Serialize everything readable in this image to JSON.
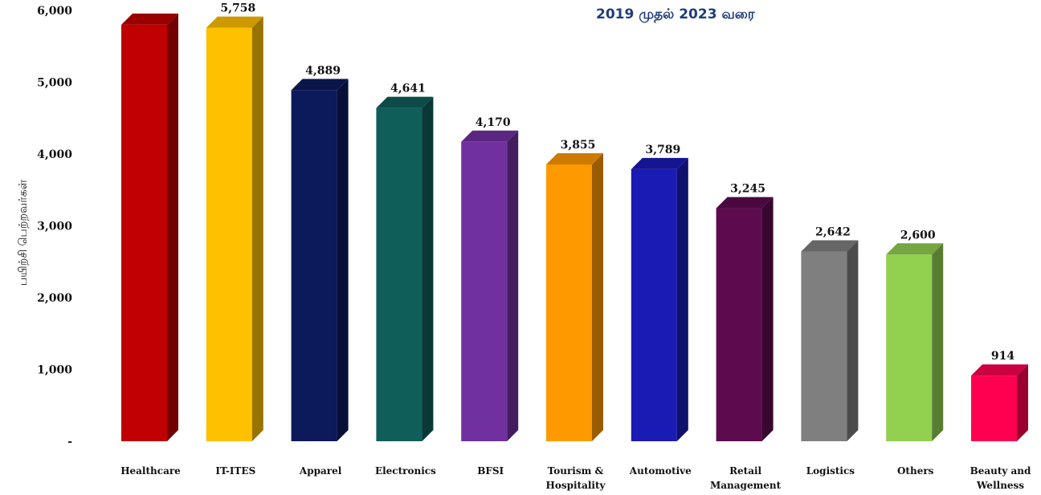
{
  "subtitle": "2019 முதல் 2023 வரை",
  "chart_data": {
    "type": "bar",
    "title": "",
    "subtitle": "2019 முதல் 2023 வரை",
    "xlabel": "",
    "ylabel": "பயிற்சி பெற்றவர்கள்",
    "ylim": [
      0,
      6000
    ],
    "yticks": [
      0,
      1000,
      2000,
      3000,
      4000,
      5000,
      6000
    ],
    "ytick_labels": [
      "-",
      "1,000",
      "2,000",
      "3,000",
      "4,000",
      "5,000",
      "6,000"
    ],
    "grid": false,
    "categories": [
      [
        "Healthcare"
      ],
      [
        "IT-ITES"
      ],
      [
        "Apparel"
      ],
      [
        "Electronics"
      ],
      [
        "BFSI"
      ],
      [
        "Tourism &",
        "Hospitality"
      ],
      [
        "Automotive"
      ],
      [
        "Retail",
        "Management"
      ],
      [
        "Logistics"
      ],
      [
        "Others"
      ],
      [
        "Beauty and",
        "Wellness"
      ]
    ],
    "values": [
      5800,
      5758,
      4889,
      4641,
      4170,
      3855,
      3789,
      3245,
      2642,
      2600,
      914
    ],
    "value_labels": [
      "",
      "5,758",
      "4,889",
      "4,641",
      "4,170",
      "3,855",
      "3,789",
      "3,245",
      "2,642",
      "2,600",
      "914"
    ],
    "colors": [
      "#c00000",
      "#ffc000",
      "#0c1a5c",
      "#0f5e5a",
      "#7030a0",
      "#ff9900",
      "#1a1ab5",
      "#5e0a4e",
      "#7f7f7f",
      "#92d050",
      "#ff0050"
    ]
  }
}
